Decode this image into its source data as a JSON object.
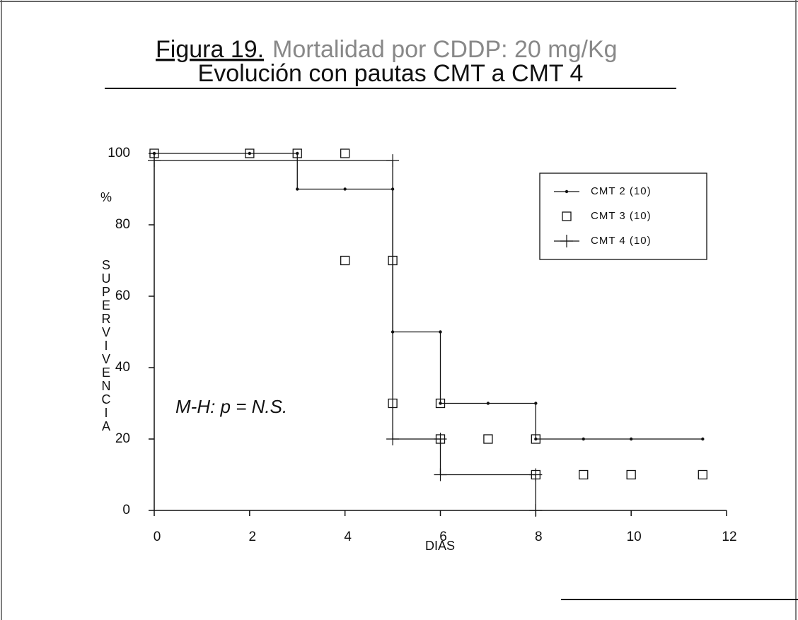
{
  "chart_data": {
    "type": "line",
    "title": "Figura 19.",
    "subtitle": "Mortalidad por CDDP: 20 mg/Kg",
    "subtitle2": "Evolución con pautas CMT a CMT 4",
    "ylabel": [
      "%",
      "SUPERVIVENCIA"
    ],
    "xlabel": "DIAS",
    "annotation": "M-H: p = N.S.",
    "xlim": [
      0,
      12
    ],
    "xticks": [
      0,
      2,
      4,
      6,
      8,
      10,
      12
    ],
    "ylim": [
      0,
      100
    ],
    "yticks": [
      0,
      20,
      40,
      60,
      80,
      100
    ],
    "legend": "upper right",
    "series": [
      {
        "name": "CMT 2 (10)",
        "color": "#111111",
        "marker": "dot",
        "drawstyle": "steps-post",
        "x": [
          0,
          2,
          3,
          3,
          4,
          5,
          5,
          6,
          6,
          7,
          8,
          8,
          9,
          10,
          11.5
        ],
        "values": [
          100,
          100,
          100,
          90,
          90,
          90,
          50,
          50,
          30,
          30,
          30,
          20,
          20,
          20,
          20
        ]
      },
      {
        "name": "CMT 3 (10)",
        "color": "#111111",
        "marker": "square",
        "drawstyle": "none",
        "x": [
          0,
          2,
          3,
          4,
          4,
          5,
          5,
          6,
          6,
          7,
          8,
          8,
          9,
          10,
          11.5
        ],
        "values": [
          100,
          100,
          100,
          100,
          70,
          70,
          30,
          30,
          20,
          20,
          20,
          10,
          10,
          10,
          10
        ]
      },
      {
        "name": "CMT 4 (10)",
        "color": "#111111",
        "marker": "plus",
        "drawstyle": "steps-post",
        "x": [
          0,
          5,
          5,
          6,
          6,
          8,
          8
        ],
        "values": [
          98,
          98,
          20,
          20,
          10,
          10,
          0
        ]
      }
    ]
  }
}
